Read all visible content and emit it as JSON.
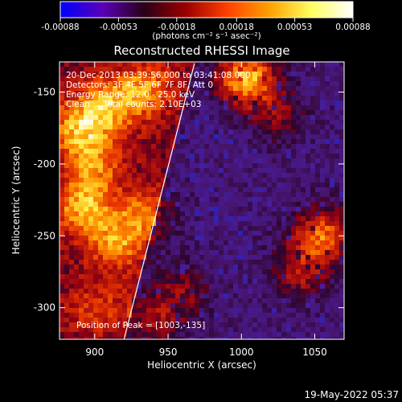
{
  "colorbar": {
    "ticks": [
      "-0.00088",
      "-0.00053",
      "-0.00018",
      "0.00018",
      "0.00053",
      "0.00088"
    ],
    "tick_values": [
      -0.00088,
      -0.00053,
      -0.00018,
      0.00018,
      0.00053,
      0.00088
    ],
    "range": [
      -0.00088,
      0.00088
    ],
    "unit": "(photons cm⁻² s⁻¹ asec⁻²)",
    "colors": [
      "#0000ff",
      "#5a00b8",
      "#2a0018",
      "#9a0000",
      "#ff4000",
      "#ffa000",
      "#ffff60",
      "#ffffff"
    ]
  },
  "chart_data": {
    "type": "heatmap",
    "title": "Reconstructed RHESSI Image",
    "xlabel": "Heliocentric X (arcsec)",
    "ylabel": "Heliocentric Y (arcsec)",
    "xlim": [
      876,
      1070
    ],
    "ylim": [
      -322,
      -129
    ],
    "xticks": [
      900,
      950,
      1000,
      1050
    ],
    "yticks": [
      -150,
      -200,
      -250,
      -300
    ],
    "limb_line": [
      [
        920,
        -322
      ],
      [
        968,
        -130
      ]
    ],
    "annotations": {
      "time": "20-Dec-2013 03:39:56.000 to 03:41:08.000",
      "detectors": "Detectors: 3F 4F 5F 6F 7F 8F, Att 0",
      "energy": "Energy Range: 12.0 - 25.0 keV",
      "clean": "Clean     Total counts: 2.10E+03",
      "peak": "Position of Peak = [1003,-135]"
    },
    "peak_position": [
      1003,
      -135
    ],
    "sources": [
      {
        "x": 1003,
        "y": -140,
        "level": 1.0
      },
      {
        "x": 888,
        "y": -175,
        "level": 0.55
      },
      {
        "x": 910,
        "y": -160,
        "level": 0.55
      },
      {
        "x": 935,
        "y": -148,
        "level": 0.5
      },
      {
        "x": 900,
        "y": -200,
        "level": 0.45
      },
      {
        "x": 892,
        "y": -230,
        "level": 0.6
      },
      {
        "x": 915,
        "y": -255,
        "level": 0.5
      },
      {
        "x": 935,
        "y": -235,
        "level": 0.45
      },
      {
        "x": 1055,
        "y": -250,
        "level": 0.75
      },
      {
        "x": 1040,
        "y": -275,
        "level": 0.45
      },
      {
        "x": 1025,
        "y": -165,
        "level": 0.35
      },
      {
        "x": 960,
        "y": -290,
        "level": 0.35
      },
      {
        "x": 940,
        "y": -310,
        "level": 0.4
      },
      {
        "x": 900,
        "y": -300,
        "level": 0.3
      }
    ]
  },
  "footer_date": "19-May-2022 05:37"
}
